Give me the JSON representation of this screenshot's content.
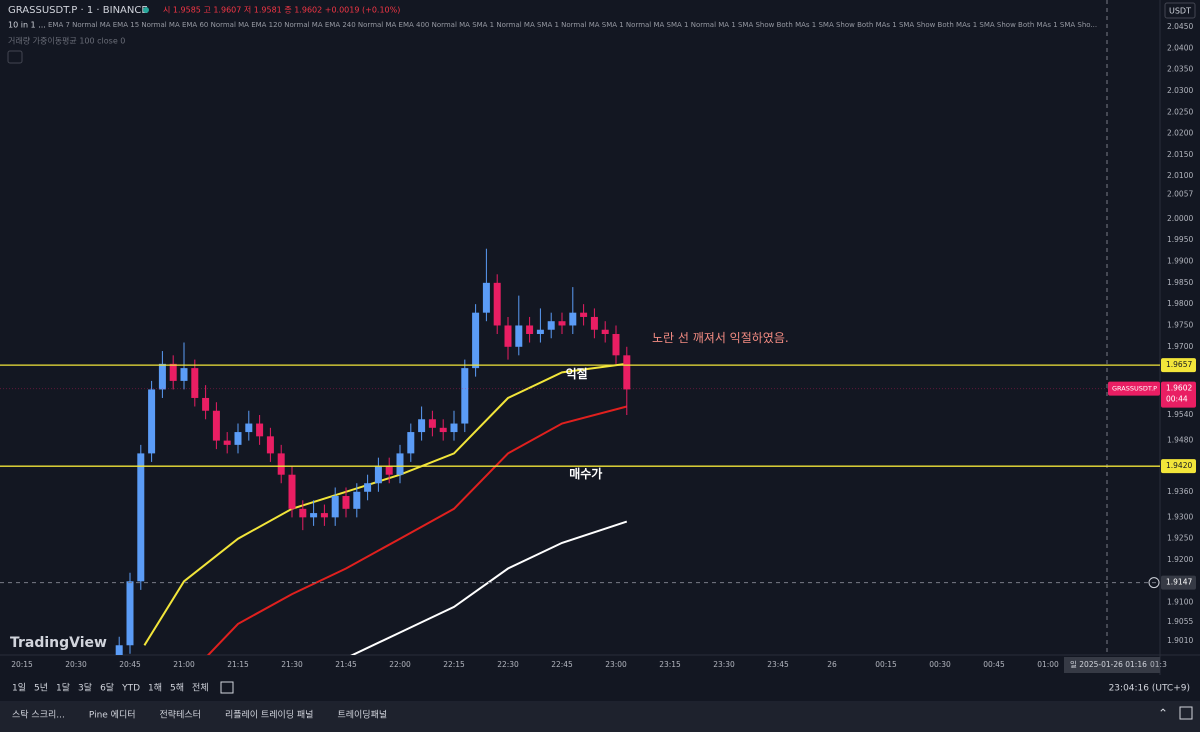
{
  "header": {
    "symbol": "GRASSUSDT.P · 1 · BINANCE",
    "ohlc": "시 1.9585 고 1.9607 저 1.9581 종 1.9602 +0.0019 (+0.10%)",
    "indicator_name": "10 in 1 ...",
    "indicator_params": "EMA 7 Normal MA EMA 15 Normal MA EMA 60 Normal MA EMA 120 Normal MA EMA 240 Normal MA EMA 400 Normal MA SMA 1 Normal MA SMA 1 Normal MA SMA 1 Normal MA SMA 1 Normal MA 1 SMA Show Both MAs 1 SMA Show Both MAs 1 SMA Show Both MAs 1 SMA Show Both MAs 1 SMA Sho...",
    "volume_indicator": "거래량 가중이동평균 100 close 0",
    "currency": "USDT"
  },
  "price_ticks": [
    "2.0450",
    "2.0400",
    "2.0350",
    "2.0300",
    "2.0250",
    "2.0200",
    "2.0150",
    "2.0100",
    "2.0057",
    "2.0000",
    "1.9950",
    "1.9900",
    "1.9850",
    "1.9800",
    "1.9750",
    "1.9700",
    "1.9540",
    "1.9480",
    "1.9360",
    "1.9300",
    "1.9250",
    "1.9200",
    "1.9100",
    "1.9055",
    "1.9010"
  ],
  "time_ticks": [
    "20:15",
    "20:30",
    "20:45",
    "21:00",
    "21:15",
    "21:30",
    "21:45",
    "22:00",
    "22:15",
    "22:30",
    "22:45",
    "23:00",
    "23:15",
    "23:30",
    "23:45",
    "26",
    "00:15",
    "00:30",
    "00:45",
    "01:00"
  ],
  "crosshair_time": "일 2025-01-26   01:16",
  "crosshair_tail": "01:3",
  "levels": [
    {
      "price": "1.9657",
      "color": "#f2e53a"
    },
    {
      "price": "1.9420",
      "color": "#f2e53a"
    }
  ],
  "crosshair_price": "1.9147",
  "last_price": {
    "price": "1.9602",
    "countdown": "00:44",
    "symbol_tag": "GRASSUSDT.P"
  },
  "annotations": [
    {
      "text": "노란 선 깨져서 익절하였음.",
      "price": "1.9720",
      "time": "23:10",
      "color": "#f28b82"
    },
    {
      "text": "익절",
      "price": "1.9635",
      "time": "22:46",
      "color": "#ffffff"
    },
    {
      "text": "매수가",
      "price": "1.9400",
      "time": "22:47",
      "color": "#ffffff"
    }
  ],
  "candles": {
    "up_color": "#5b9cf6",
    "down_color": "#e91e63",
    "times": [
      "20:42",
      "20:45",
      "20:48",
      "20:51",
      "20:54",
      "20:57",
      "21:00",
      "21:03",
      "21:06",
      "21:09",
      "21:12",
      "21:15",
      "21:18",
      "21:21",
      "21:24",
      "21:27",
      "21:30",
      "21:33",
      "21:36",
      "21:39",
      "21:42",
      "21:45",
      "21:48",
      "21:51",
      "21:54",
      "21:57",
      "22:00",
      "22:03",
      "22:06",
      "22:09",
      "22:12",
      "22:15",
      "22:18",
      "22:21",
      "22:24",
      "22:27",
      "22:30",
      "22:33",
      "22:36",
      "22:39",
      "22:42",
      "22:45",
      "22:48",
      "22:51",
      "22:54",
      "22:57",
      "23:00",
      "23:03"
    ],
    "ohlc": [
      [
        1.896,
        1.902,
        1.894,
        1.9
      ],
      [
        1.9,
        1.917,
        1.898,
        1.915
      ],
      [
        1.915,
        1.947,
        1.913,
        1.945
      ],
      [
        1.945,
        1.962,
        1.943,
        1.96
      ],
      [
        1.96,
        1.969,
        1.958,
        1.966
      ],
      [
        1.966,
        1.968,
        1.96,
        1.962
      ],
      [
        1.962,
        1.971,
        1.96,
        1.965
      ],
      [
        1.965,
        1.967,
        1.956,
        1.958
      ],
      [
        1.958,
        1.961,
        1.953,
        1.955
      ],
      [
        1.955,
        1.957,
        1.946,
        1.948
      ],
      [
        1.948,
        1.95,
        1.945,
        1.947
      ],
      [
        1.947,
        1.952,
        1.945,
        1.95
      ],
      [
        1.95,
        1.955,
        1.948,
        1.952
      ],
      [
        1.952,
        1.954,
        1.947,
        1.949
      ],
      [
        1.949,
        1.951,
        1.943,
        1.945
      ],
      [
        1.945,
        1.947,
        1.938,
        1.94
      ],
      [
        1.94,
        1.942,
        1.93,
        1.932
      ],
      [
        1.932,
        1.934,
        1.927,
        1.93
      ],
      [
        1.93,
        1.934,
        1.928,
        1.931
      ],
      [
        1.931,
        1.933,
        1.928,
        1.93
      ],
      [
        1.93,
        1.937,
        1.928,
        1.935
      ],
      [
        1.935,
        1.937,
        1.93,
        1.932
      ],
      [
        1.932,
        1.938,
        1.93,
        1.936
      ],
      [
        1.936,
        1.94,
        1.934,
        1.938
      ],
      [
        1.938,
        1.944,
        1.936,
        1.942
      ],
      [
        1.942,
        1.944,
        1.938,
        1.94
      ],
      [
        1.94,
        1.947,
        1.938,
        1.945
      ],
      [
        1.945,
        1.952,
        1.943,
        1.95
      ],
      [
        1.95,
        1.956,
        1.948,
        1.953
      ],
      [
        1.953,
        1.955,
        1.949,
        1.951
      ],
      [
        1.951,
        1.953,
        1.948,
        1.95
      ],
      [
        1.95,
        1.955,
        1.948,
        1.952
      ],
      [
        1.952,
        1.967,
        1.95,
        1.965
      ],
      [
        1.965,
        1.98,
        1.963,
        1.978
      ],
      [
        1.978,
        1.993,
        1.976,
        1.985
      ],
      [
        1.985,
        1.987,
        1.973,
        1.975
      ],
      [
        1.975,
        1.977,
        1.967,
        1.97
      ],
      [
        1.97,
        1.982,
        1.968,
        1.975
      ],
      [
        1.975,
        1.977,
        1.971,
        1.973
      ],
      [
        1.973,
        1.979,
        1.971,
        1.974
      ],
      [
        1.974,
        1.978,
        1.972,
        1.976
      ],
      [
        1.976,
        1.978,
        1.973,
        1.975
      ],
      [
        1.975,
        1.984,
        1.973,
        1.978
      ],
      [
        1.978,
        1.98,
        1.975,
        1.977
      ],
      [
        1.977,
        1.979,
        1.972,
        1.974
      ],
      [
        1.974,
        1.976,
        1.971,
        1.973
      ],
      [
        1.973,
        1.975,
        1.966,
        1.968
      ],
      [
        1.968,
        1.97,
        1.954,
        1.96
      ]
    ]
  },
  "moving_averages": [
    {
      "color": "#f2e53a",
      "times": [
        "20:49",
        "21:00",
        "21:15",
        "21:30",
        "21:45",
        "22:00",
        "22:15",
        "22:30",
        "22:45",
        "23:03"
      ],
      "values": [
        1.9,
        1.915,
        1.925,
        1.932,
        1.936,
        1.94,
        1.945,
        1.958,
        1.964,
        1.966
      ]
    },
    {
      "color": "#e0201e",
      "times": [
        "20:58",
        "21:15",
        "21:30",
        "21:45",
        "22:00",
        "22:15",
        "22:30",
        "22:45",
        "23:03"
      ],
      "values": [
        1.89,
        1.905,
        1.912,
        1.918,
        1.925,
        1.932,
        1.945,
        1.952,
        1.956
      ]
    },
    {
      "color": "#ffffff",
      "times": [
        "21:45",
        "22:00",
        "22:15",
        "22:30",
        "22:45",
        "23:03"
      ],
      "values": [
        1.897,
        1.903,
        1.909,
        1.918,
        1.924,
        1.929
      ]
    }
  ],
  "logo": "TradingView",
  "range_buttons": [
    "1일",
    "5년",
    "1달",
    "3달",
    "6달",
    "YTD",
    "1해",
    "5해",
    "전체"
  ],
  "clock": "23:04:16 (UTC+9)",
  "bottom_tabs": [
    "스탁 스크리...",
    "Pine 에디터",
    "전략테스터",
    "리플레이 트레이딩 패널",
    "트레이딩패널"
  ]
}
